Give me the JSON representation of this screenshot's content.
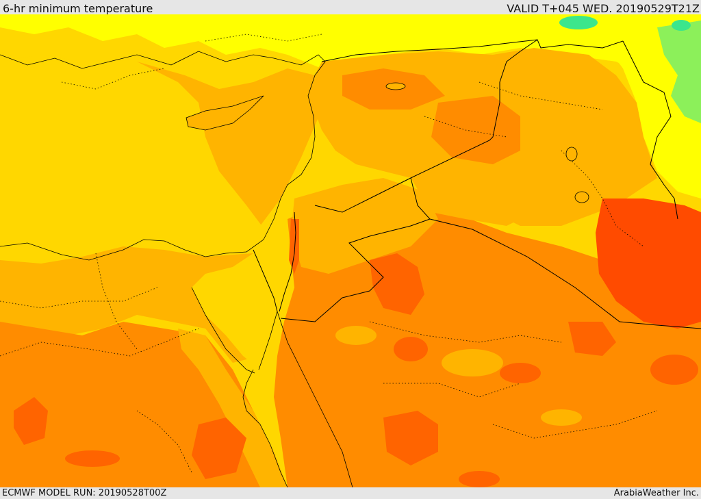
{
  "header": {
    "title": "6-hr minimum temperature",
    "valid_label": "VALID T+045 WED. 20190529T21Z"
  },
  "footer": {
    "model_run": "ECMWF MODEL RUN: 20190528T00Z",
    "credit": "ArabiaWeather Inc."
  },
  "map": {
    "field": "6-hr minimum temperature",
    "colors": {
      "light_green": "#8cf05a",
      "bright_green": "#3ce68c",
      "yellow": "#ffff00",
      "gold": "#ffd700",
      "amber": "#ffb400",
      "orange": "#ff8c00",
      "dark_orange": "#ff6400",
      "red_orange": "#ff4b00",
      "border": "#000000"
    }
  }
}
